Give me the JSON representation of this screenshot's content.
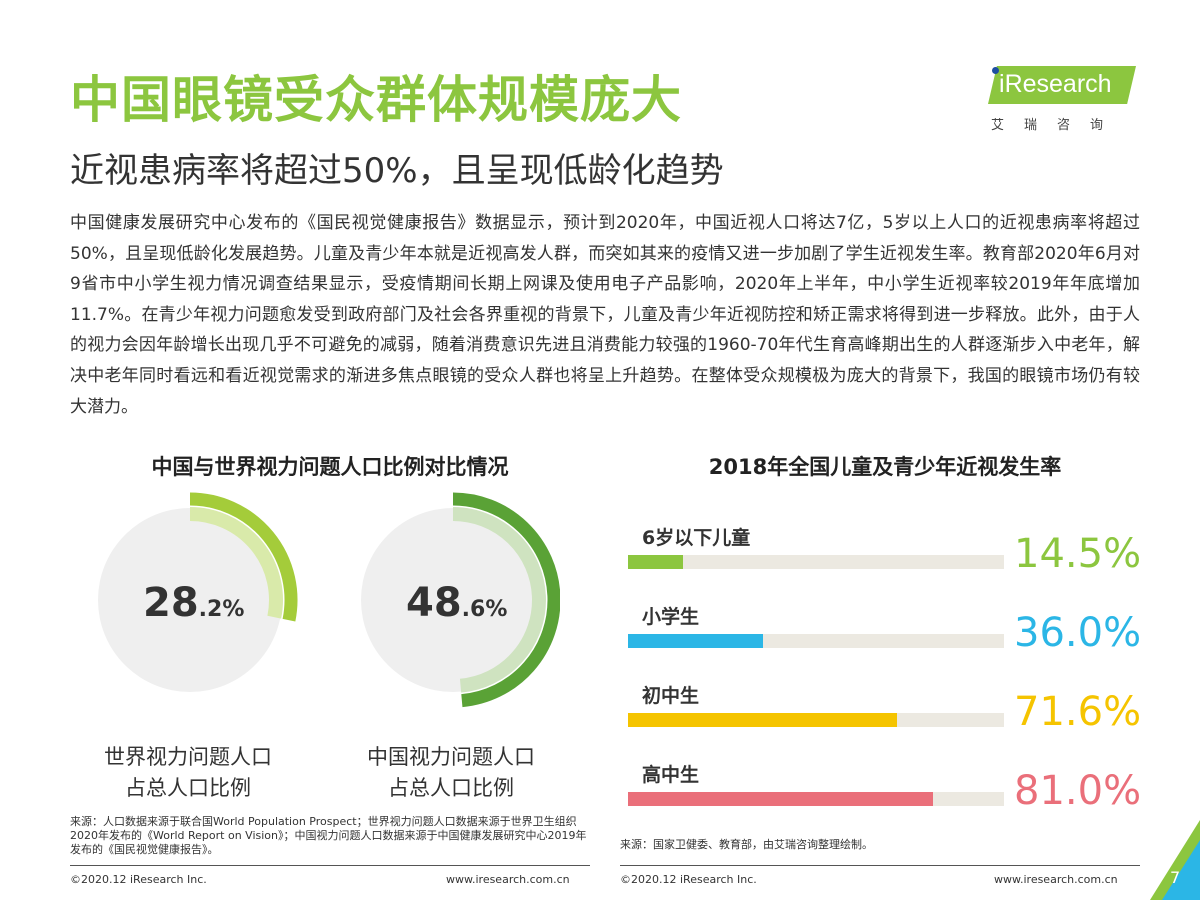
{
  "header": {
    "title": "中国眼镜受众群体规模庞大",
    "subtitle": "近视患病率将超过50%，且呈现低龄化趋势"
  },
  "logo": {
    "text": "Research",
    "chinese": "艾瑞咨询"
  },
  "body_text": "中国健康发展研究中心发布的《国民视觉健康报告》数据显示，预计到2020年，中国近视人口将达7亿，5岁以上人口的近视患病率将超过50%，且呈现低龄化发展趋势。儿童及青少年本就是近视高发人群，而突如其来的疫情又进一步加剧了学生近视发生率。教育部2020年6月对9省市中小学生视力情况调查结果显示，受疫情期间长期上网课及使用电子产品影响，2020年上半年，中小学生近视率较2019年年底增加11.7%。在青少年视力问题愈发受到政府部门及社会各界重视的背景下，儿童及青少年近视防控和矫正需求将得到进一步释放。此外，由于人的视力会因年龄增长出现几乎不可避免的减弱，随着消费意识先进且消费能力较强的1960-70年代生育高峰期出生的人群逐渐步入中老年，解决中老年同时看远和看近视觉需求的渐进多焦点眼镜的受众人群也将呈上升趋势。在整体受众规模极为庞大的背景下，我国的眼镜市场仍有较大潜力。",
  "colors": {
    "brand_green": "#8cc63f",
    "donut_bg": "#efefef"
  },
  "chart_data": [
    {
      "type": "pie",
      "title": "中国与世界视力问题人口比例对比情况",
      "series": [
        {
          "name": "世界视力问题人口占总人口比例",
          "value": 28.2,
          "value_int": "28",
          "value_dec": ".2%",
          "label_line1": "世界视力问题人口",
          "label_line2": "占总人口比例",
          "color": "#a4cc3a",
          "light": "#d9eaaa"
        },
        {
          "name": "中国视力问题人口占总人口比例",
          "value": 48.6,
          "value_int": "48",
          "value_dec": ".6%",
          "label_line1": "中国视力问题人口",
          "label_line2": "占总人口比例",
          "color": "#5aa236",
          "light": "#cfe3c0"
        }
      ]
    },
    {
      "type": "bar",
      "title": "2018年全国儿童及青少年近视发生率",
      "categories": [
        "6岁以下儿童",
        "小学生",
        "初中生",
        "高中生"
      ],
      "values": [
        14.5,
        36.0,
        71.6,
        81.0
      ],
      "value_labels": [
        "14.5%",
        "36.0%",
        "71.6%",
        "81.0%"
      ],
      "colors": [
        "#8cc63f",
        "#2bb6e6",
        "#f5c400",
        "#ea6f7a"
      ],
      "ylim": [
        0,
        100
      ]
    }
  ],
  "sources": {
    "left": "来源：人口数据来源于联合国World Population Prospect；世界视力问题人口数据来源于世界卫生组织2020年发布的《World Report on Vision》；中国视力问题人口数据来源于中国健康发展研究中心2019年发布的《国民视觉健康报告》。",
    "right": "来源：国家卫健委、教育部，由艾瑞咨询整理绘制。"
  },
  "footer": {
    "copyright_left": "©2020.12 iResearch Inc.",
    "url_left": "www.iresearch.com.cn",
    "copyright_right": "©2020.12 iResearch Inc.",
    "url_right": "www.iresearch.com.cn",
    "page_number": "7"
  }
}
